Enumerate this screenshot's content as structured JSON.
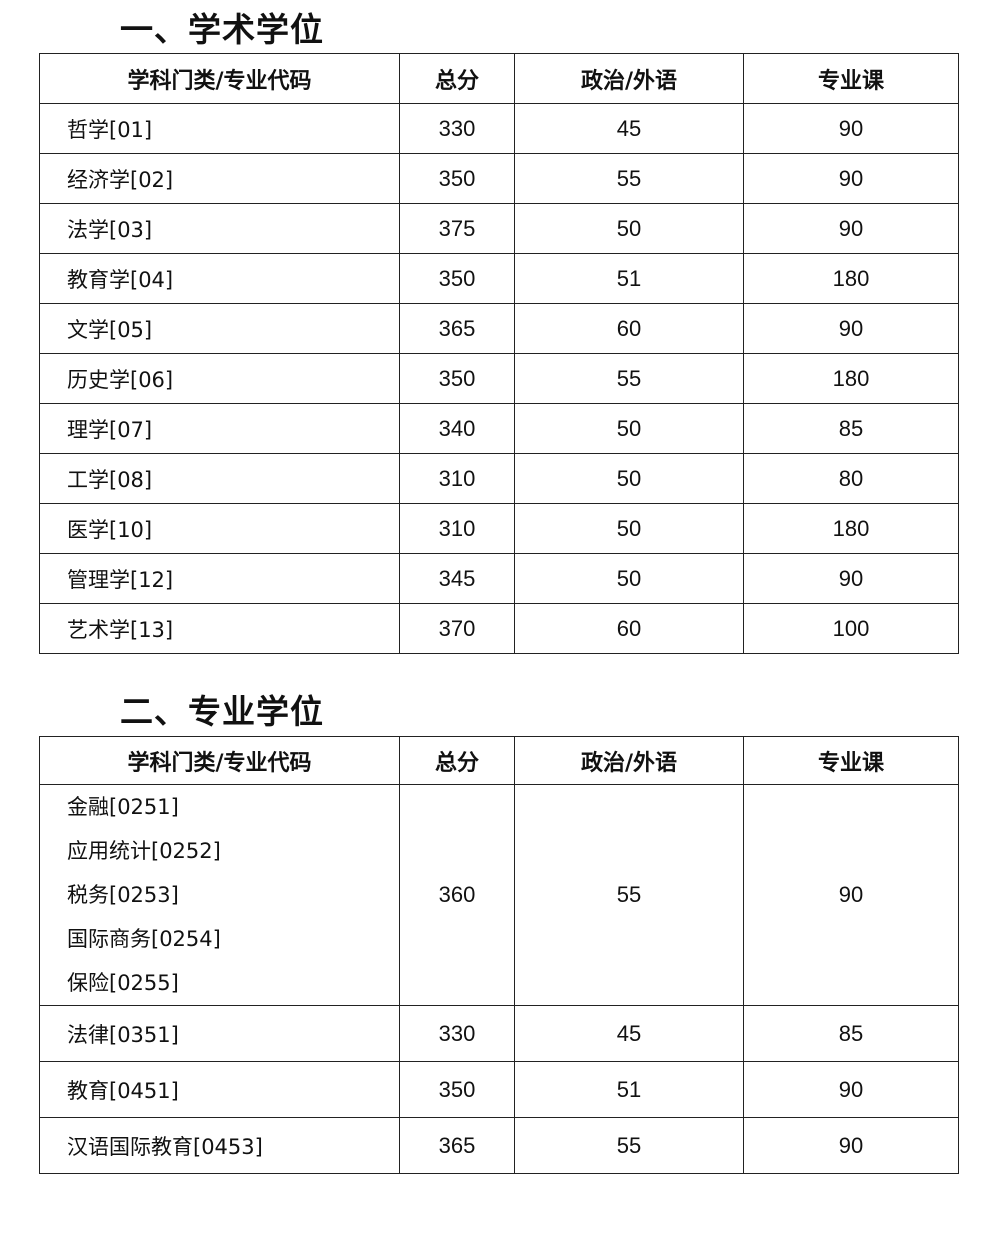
{
  "academic": {
    "title": "一、学术学位",
    "headers": [
      "学科门类/专业代码",
      "总分",
      "政治/外语",
      "专业课"
    ],
    "rows": [
      {
        "name": "哲学[01]",
        "total": "330",
        "politics_language": "45",
        "major": "90"
      },
      {
        "name": "经济学[02]",
        "total": "350",
        "politics_language": "55",
        "major": "90"
      },
      {
        "name": "法学[03]",
        "total": "375",
        "politics_language": "50",
        "major": "90"
      },
      {
        "name": "教育学[04]",
        "total": "350",
        "politics_language": "51",
        "major": "180"
      },
      {
        "name": "文学[05]",
        "total": "365",
        "politics_language": "60",
        "major": "90"
      },
      {
        "name": "历史学[06]",
        "total": "350",
        "politics_language": "55",
        "major": "180"
      },
      {
        "name": "理学[07]",
        "total": "340",
        "politics_language": "50",
        "major": "85"
      },
      {
        "name": "工学[08]",
        "total": "310",
        "politics_language": "50",
        "major": "80"
      },
      {
        "name": "医学[10]",
        "total": "310",
        "politics_language": "50",
        "major": "180"
      },
      {
        "name": "管理学[12]",
        "total": "345",
        "politics_language": "50",
        "major": "90"
      },
      {
        "name": "艺术学[13]",
        "total": "370",
        "politics_language": "60",
        "major": "100"
      }
    ]
  },
  "professional": {
    "title": "二、专业学位",
    "headers": [
      "学科门类/专业代码",
      "总分",
      "政治/外语",
      "专业课"
    ],
    "group": {
      "names": [
        "金融[0251]",
        "应用统计[0252]",
        "税务[0253]",
        "国际商务[0254]",
        "保险[0255]"
      ],
      "total": "360",
      "politics_language": "55",
      "major": "90"
    },
    "rows": [
      {
        "name": "法律[0351]",
        "total": "330",
        "politics_language": "45",
        "major": "85"
      },
      {
        "name": "教育[0451]",
        "total": "350",
        "politics_language": "51",
        "major": "90"
      },
      {
        "name": "汉语国际教育[0453]",
        "total": "365",
        "politics_language": "55",
        "major": "90"
      }
    ]
  }
}
